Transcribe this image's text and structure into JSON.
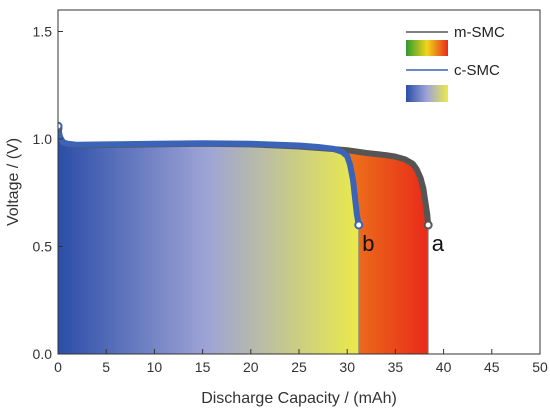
{
  "chart_data": {
    "type": "line",
    "xlabel": "Discharge Capacity / (mAh)",
    "ylabel": "Voltage / (V)",
    "xlim": [
      0,
      50
    ],
    "ylim": [
      0.0,
      1.6
    ],
    "xticks": [
      "0",
      "5",
      "10",
      "15",
      "20",
      "25",
      "30",
      "35",
      "40",
      "45",
      "50"
    ],
    "yticks": [
      "0.0",
      "0.5",
      "1.0",
      "1.5"
    ],
    "grid": false,
    "legend_position": "top-right",
    "series": [
      {
        "name": "m-SMC",
        "line_color": "#555555",
        "fill_gradient": [
          "#2e9c2e",
          "#f2d41c",
          "#e82a1a"
        ],
        "x": [
          0,
          0.2,
          0.5,
          1,
          2,
          5,
          10,
          15,
          20,
          25,
          28,
          30,
          32,
          34,
          35,
          36,
          36.8,
          37.2,
          37.6,
          37.9,
          38.1,
          38.3,
          38.4
        ],
        "y": [
          1.05,
          1.01,
          0.985,
          0.975,
          0.97,
          0.972,
          0.975,
          0.978,
          0.975,
          0.965,
          0.955,
          0.948,
          0.935,
          0.925,
          0.918,
          0.905,
          0.885,
          0.86,
          0.82,
          0.77,
          0.71,
          0.65,
          0.6
        ]
      },
      {
        "name": "c-SMC",
        "line_color": "#3b64b8",
        "fill_gradient": [
          "#2b4ea8",
          "#9fa4d6",
          "#eaea4a"
        ],
        "x": [
          0,
          0.2,
          0.5,
          1,
          2,
          5,
          10,
          15,
          20,
          25,
          27,
          28.5,
          29.5,
          30.0,
          30.3,
          30.6,
          30.8,
          31.0,
          31.2
        ],
        "y": [
          1.06,
          1.01,
          0.985,
          0.978,
          0.973,
          0.975,
          0.978,
          0.98,
          0.978,
          0.97,
          0.963,
          0.955,
          0.94,
          0.92,
          0.88,
          0.81,
          0.73,
          0.65,
          0.6
        ]
      }
    ],
    "annotations": [
      {
        "text": "b",
        "x": 32.2,
        "y": 0.48
      },
      {
        "text": "a",
        "x": 39.4,
        "y": 0.48
      }
    ]
  }
}
